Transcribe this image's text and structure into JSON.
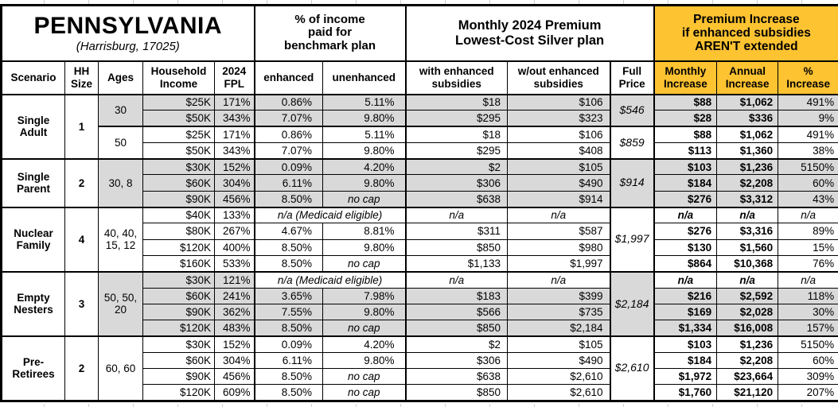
{
  "colors": {
    "accent_orange": "#FDC331",
    "shade_gray": "#D9D9D9"
  },
  "title": {
    "state": "PENNSYLVANIA",
    "location": "(Harrisburg, 17025)"
  },
  "header_groups": {
    "benchmark": "% of income\npaid for\nbenchmark plan",
    "premium": "Monthly 2024 Premium\nLowest-Cost Silver plan",
    "increase": "Premium Increase\nif enhanced subsidies\nAREN'T extended"
  },
  "columns": {
    "scenario": "Scenario",
    "hh_size": "HH\nSize",
    "ages": "Ages",
    "income": "Household\nIncome",
    "fpl": "2024\nFPL",
    "enhanced": "enhanced",
    "unenhanced": "unenhanced",
    "with_subsidies": "with enhanced\nsubsidies",
    "without_subsidies": "w/out enhanced\nsubsidies",
    "full_price": "Full\nPrice",
    "monthly_increase": "Monthly\nIncrease",
    "annual_increase": "Annual\nIncrease",
    "pct_increase": "%\nIncrease"
  },
  "groups": [
    {
      "scenario": "Single Adult",
      "hh_size": "1",
      "subgroups": [
        {
          "ages": "30",
          "full_price": "$546",
          "shaded": true,
          "rows": [
            {
              "income": "$25K",
              "fpl": "171%",
              "enhanced": "0.86%",
              "unenhanced": "5.11%",
              "with_sub": "$18",
              "without_sub": "$106",
              "monthly": "$88",
              "annual": "$1,062",
              "pct": "491%"
            },
            {
              "income": "$50K",
              "fpl": "343%",
              "enhanced": "7.07%",
              "unenhanced": "9.80%",
              "with_sub": "$295",
              "without_sub": "$323",
              "monthly": "$28",
              "annual": "$336",
              "pct": "9%"
            }
          ]
        },
        {
          "ages": "50",
          "full_price": "$859",
          "shaded": false,
          "rows": [
            {
              "income": "$25K",
              "fpl": "171%",
              "enhanced": "0.86%",
              "unenhanced": "5.11%",
              "with_sub": "$18",
              "without_sub": "$106",
              "monthly": "$88",
              "annual": "$1,062",
              "pct": "491%"
            },
            {
              "income": "$50K",
              "fpl": "343%",
              "enhanced": "7.07%",
              "unenhanced": "9.80%",
              "with_sub": "$295",
              "without_sub": "$408",
              "monthly": "$113",
              "annual": "$1,360",
              "pct": "38%"
            }
          ]
        }
      ]
    },
    {
      "scenario": "Single Parent",
      "hh_size": "2",
      "subgroups": [
        {
          "ages": "30, 8",
          "full_price": "$914",
          "shaded": true,
          "rows": [
            {
              "income": "$30K",
              "fpl": "152%",
              "enhanced": "0.09%",
              "unenhanced": "4.20%",
              "with_sub": "$2",
              "without_sub": "$105",
              "monthly": "$103",
              "annual": "$1,236",
              "pct": "5150%"
            },
            {
              "income": "$60K",
              "fpl": "304%",
              "enhanced": "6.11%",
              "unenhanced": "9.80%",
              "with_sub": "$306",
              "without_sub": "$490",
              "monthly": "$184",
              "annual": "$2,208",
              "pct": "60%"
            },
            {
              "income": "$90K",
              "fpl": "456%",
              "enhanced": "8.50%",
              "unenhanced": "no cap",
              "with_sub": "$638",
              "without_sub": "$914",
              "monthly": "$276",
              "annual": "$3,312",
              "pct": "43%"
            }
          ]
        }
      ]
    },
    {
      "scenario": "Nuclear Family",
      "hh_size": "4",
      "subgroups": [
        {
          "ages": "40, 40, 15, 12",
          "full_price": "$1,997",
          "shaded": false,
          "rows": [
            {
              "income": "$40K",
              "fpl": "133%",
              "medicaid": true,
              "note": "n/a (Medicaid eligible)",
              "with_sub": "n/a",
              "without_sub": "n/a",
              "monthly": "n/a",
              "annual": "n/a",
              "pct": "n/a"
            },
            {
              "income": "$80K",
              "fpl": "267%",
              "enhanced": "4.67%",
              "unenhanced": "8.81%",
              "with_sub": "$311",
              "without_sub": "$587",
              "monthly": "$276",
              "annual": "$3,316",
              "pct": "89%"
            },
            {
              "income": "$120K",
              "fpl": "400%",
              "enhanced": "8.50%",
              "unenhanced": "9.80%",
              "with_sub": "$850",
              "without_sub": "$980",
              "monthly": "$130",
              "annual": "$1,560",
              "pct": "15%"
            },
            {
              "income": "$160K",
              "fpl": "533%",
              "enhanced": "8.50%",
              "unenhanced": "no cap",
              "with_sub": "$1,133",
              "without_sub": "$1,997",
              "monthly": "$864",
              "annual": "$10,368",
              "pct": "76%"
            }
          ]
        }
      ]
    },
    {
      "scenario": "Empty Nesters",
      "hh_size": "3",
      "subgroups": [
        {
          "ages": "50, 50, 20",
          "full_price": "$2,184",
          "shaded": true,
          "rows": [
            {
              "income": "$30K",
              "fpl": "121%",
              "medicaid": true,
              "note": "n/a (Medicaid eligible)",
              "with_sub": "n/a",
              "without_sub": "n/a",
              "monthly": "n/a",
              "annual": "n/a",
              "pct": "n/a"
            },
            {
              "income": "$60K",
              "fpl": "241%",
              "enhanced": "3.65%",
              "unenhanced": "7.98%",
              "with_sub": "$183",
              "without_sub": "$399",
              "monthly": "$216",
              "annual": "$2,592",
              "pct": "118%"
            },
            {
              "income": "$90K",
              "fpl": "362%",
              "enhanced": "7.55%",
              "unenhanced": "9.80%",
              "with_sub": "$566",
              "without_sub": "$735",
              "monthly": "$169",
              "annual": "$2,028",
              "pct": "30%"
            },
            {
              "income": "$120K",
              "fpl": "483%",
              "enhanced": "8.50%",
              "unenhanced": "no cap",
              "with_sub": "$850",
              "without_sub": "$2,184",
              "monthly": "$1,334",
              "annual": "$16,008",
              "pct": "157%"
            }
          ]
        }
      ]
    },
    {
      "scenario": "Pre-Retirees",
      "hh_size": "2",
      "subgroups": [
        {
          "ages": "60, 60",
          "full_price": "$2,610",
          "shaded": false,
          "rows": [
            {
              "income": "$30K",
              "fpl": "152%",
              "enhanced": "0.09%",
              "unenhanced": "4.20%",
              "with_sub": "$2",
              "without_sub": "$105",
              "monthly": "$103",
              "annual": "$1,236",
              "pct": "5150%"
            },
            {
              "income": "$60K",
              "fpl": "304%",
              "enhanced": "6.11%",
              "unenhanced": "9.80%",
              "with_sub": "$306",
              "without_sub": "$490",
              "monthly": "$184",
              "annual": "$2,208",
              "pct": "60%"
            },
            {
              "income": "$90K",
              "fpl": "456%",
              "enhanced": "8.50%",
              "unenhanced": "no cap",
              "with_sub": "$638",
              "without_sub": "$2,610",
              "monthly": "$1,972",
              "annual": "$23,664",
              "pct": "309%"
            },
            {
              "income": "$120K",
              "fpl": "609%",
              "enhanced": "8.50%",
              "unenhanced": "no cap",
              "with_sub": "$850",
              "without_sub": "$2,610",
              "monthly": "$1,760",
              "annual": "$21,120",
              "pct": "207%"
            }
          ]
        }
      ]
    }
  ]
}
